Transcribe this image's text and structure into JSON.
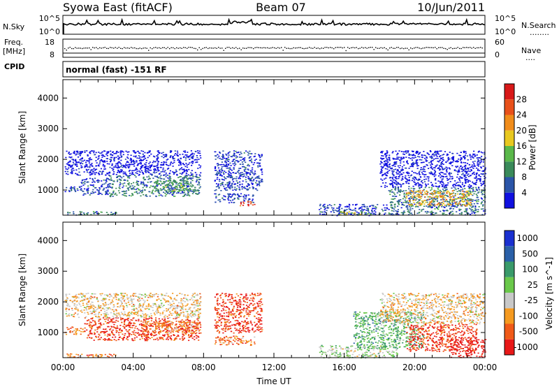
{
  "header": {
    "station": "Syowa East (fitACF)",
    "beam": "Beam 07",
    "date": "10/Jun/2011"
  },
  "panels": {
    "nsky": {
      "label": "N.Sky",
      "left_ticks": [
        "10^5",
        "10^0"
      ],
      "right_ticks": [
        "10^5",
        "10^0"
      ],
      "right_label": "N.Search",
      "right_dots": "........"
    },
    "freq": {
      "label_line1": "Freq.",
      "label_line2": "[MHz]",
      "left_ticks": [
        "18",
        "8"
      ],
      "right_ticks": [
        "60",
        "0"
      ],
      "right_label": "Nave",
      "right_dots": "...."
    },
    "cpid": {
      "label": "CPID",
      "mode": "normal (fast) -151 RF"
    }
  },
  "colors": {
    "power": [
      "#1010e0",
      "#2b55a8",
      "#3a8a5a",
      "#5ab84a",
      "#e8c820",
      "#f08c1a",
      "#e8501a",
      "#d81818"
    ],
    "velocity": [
      "#e81818",
      "#f05a18",
      "#f59a20",
      "#c8c8c8",
      "#6ac84a",
      "#3a9a6a",
      "#2a60a8",
      "#1a30d0"
    ]
  },
  "chart_data": [
    {
      "type": "heatmap",
      "panel": "power",
      "xlabel": "Time UT",
      "ylabel": "Slant Range [km]",
      "y_ticks": [
        "1000",
        "2000",
        "3000",
        "4000"
      ],
      "y_range": [
        180,
        4600
      ],
      "x_range_hours": [
        0,
        24
      ],
      "colorbar_label": "Power [dB]",
      "colorbar_ticks": [
        "4",
        "8",
        "12",
        "16",
        "20",
        "24",
        "28"
      ],
      "colorbar_range": [
        0,
        32
      ],
      "regions": [
        {
          "t0": 0.1,
          "t1": 1.1,
          "r0": 950,
          "r1": 1150,
          "c": 1
        },
        {
          "t0": 1.0,
          "t1": 2.6,
          "r0": 850,
          "r1": 1400,
          "c": 1
        },
        {
          "t0": 2.6,
          "t1": 7.8,
          "r0": 800,
          "r1": 1500,
          "c": 2
        },
        {
          "t0": 5.0,
          "t1": 7.2,
          "r0": 950,
          "r1": 1350,
          "c": 3
        },
        {
          "t0": 0.1,
          "t1": 7.8,
          "r0": 1500,
          "r1": 2300,
          "c": 0
        },
        {
          "t0": 0.1,
          "t1": 3.0,
          "r0": 200,
          "r1": 320,
          "c": 2
        },
        {
          "t0": 8.6,
          "t1": 10.8,
          "r0": 600,
          "r1": 900,
          "c": 1
        },
        {
          "t0": 10.0,
          "t1": 10.9,
          "r0": 500,
          "r1": 650,
          "c": 7
        },
        {
          "t0": 8.6,
          "t1": 11.3,
          "r0": 1000,
          "r1": 2300,
          "c": 1
        },
        {
          "t0": 14.5,
          "t1": 18.5,
          "r0": 180,
          "r1": 550,
          "c": 1
        },
        {
          "t0": 15.5,
          "t1": 17.5,
          "r0": 200,
          "r1": 320,
          "c": 4
        },
        {
          "t0": 18.5,
          "t1": 24.0,
          "r0": 200,
          "r1": 1100,
          "c": 2
        },
        {
          "t0": 19.5,
          "t1": 23.2,
          "r0": 500,
          "r1": 1000,
          "c": 5
        },
        {
          "t0": 18.0,
          "t1": 24.0,
          "r0": 1100,
          "r1": 2300,
          "c": 0
        }
      ]
    },
    {
      "type": "heatmap",
      "panel": "velocity",
      "xlabel": "Time UT",
      "ylabel": "Slant Range [km]",
      "y_ticks": [
        "1000",
        "2000",
        "3000",
        "4000"
      ],
      "y_range": [
        180,
        4600
      ],
      "x_range_hours": [
        0,
        24
      ],
      "x_ticks": [
        "00:00",
        "04:00",
        "08:00",
        "12:00",
        "16:00",
        "20:00",
        "00:00"
      ],
      "colorbar_label": "Velocity [m s^-1]",
      "colorbar_ticks": [
        "-1000",
        "-500",
        "-100",
        "-25",
        "25",
        "100",
        "500",
        "1000"
      ],
      "regions": [
        {
          "t0": 0.1,
          "t1": 1.2,
          "r0": 950,
          "r1": 1200,
          "c": 2
        },
        {
          "t0": 1.2,
          "t1": 7.8,
          "r0": 750,
          "r1": 1500,
          "c": 1
        },
        {
          "t0": 4.5,
          "t1": 7.8,
          "r0": 1000,
          "r1": 1400,
          "c": 2
        },
        {
          "t0": 0.1,
          "t1": 7.8,
          "r0": 1500,
          "r1": 2300,
          "c": 3
        },
        {
          "t0": 0.1,
          "t1": 3.0,
          "r0": 200,
          "r1": 320,
          "c": 2
        },
        {
          "t0": 8.6,
          "t1": 10.9,
          "r0": 600,
          "r1": 900,
          "c": 2
        },
        {
          "t0": 8.6,
          "t1": 11.3,
          "r0": 1000,
          "r1": 2300,
          "c": 1
        },
        {
          "t0": 14.5,
          "t1": 19.0,
          "r0": 180,
          "r1": 600,
          "c": 4
        },
        {
          "t0": 16.5,
          "t1": 20.5,
          "r0": 500,
          "r1": 1700,
          "c": 5
        },
        {
          "t0": 19.5,
          "t1": 23.5,
          "r0": 400,
          "r1": 1300,
          "c": 1
        },
        {
          "t0": 22.0,
          "t1": 24.0,
          "r0": 200,
          "r1": 800,
          "c": 0
        },
        {
          "t0": 18.0,
          "t1": 24.0,
          "r0": 1300,
          "r1": 2300,
          "c": 3
        }
      ]
    }
  ]
}
